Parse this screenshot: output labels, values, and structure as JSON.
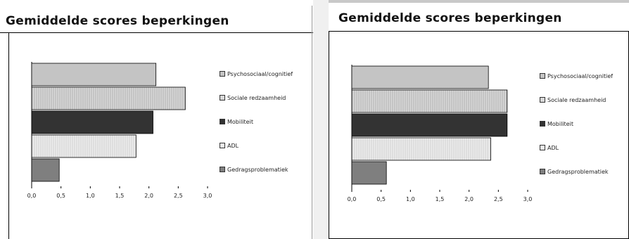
{
  "colors": {
    "Psychosociaal/cognitief": "#c4c4c4",
    "Sociale redzaamheid": "#d8d8d8",
    "Mobiliteit": "#333333",
    "ADL": "#ececec",
    "Gedragsproblematiek": "#7f7f7f"
  },
  "chart_data": [
    {
      "type": "bar",
      "orientation": "horizontal",
      "title": "Gemiddelde scores beperkingen",
      "categories": [
        "Psychosociaal/cognitief",
        "Sociale redzaamheid",
        "Mobiliteit",
        "ADL",
        "Gedragsproblematiek"
      ],
      "values": [
        2.12,
        2.62,
        2.07,
        1.78,
        0.47
      ],
      "xlim": [
        0,
        3
      ],
      "xticks": [
        "0,0",
        "0,5",
        "1,0",
        "1,5",
        "2,0",
        "2,5",
        "3,0"
      ],
      "legend_position": "right"
    },
    {
      "type": "bar",
      "orientation": "horizontal",
      "title": "Gemiddelde scores beperkingen",
      "categories": [
        "Psychosociaal/cognitief",
        "Sociale redzaamheid",
        "Mobiliteit",
        "ADL",
        "Gedragsproblematiek"
      ],
      "values": [
        2.33,
        2.65,
        2.65,
        2.37,
        0.59
      ],
      "xlim": [
        0,
        3
      ],
      "xticks": [
        "0,0",
        "0,5",
        "1,0",
        "1,5",
        "2,0",
        "2,5",
        "3,0"
      ],
      "legend_position": "right"
    }
  ]
}
